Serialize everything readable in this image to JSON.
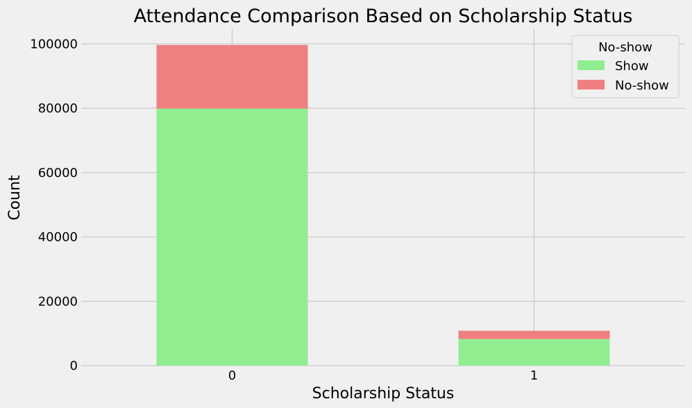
{
  "chart_data": {
    "type": "bar",
    "stacked": true,
    "title": "Attendance Comparison Based on Scholarship Status",
    "xlabel": "Scholarship Status",
    "ylabel": "Count",
    "categories": [
      "0",
      "1"
    ],
    "series": [
      {
        "name": "Show",
        "values": [
          79925,
          8283
        ],
        "color": "#90ee90"
      },
      {
        "name": "No-show",
        "values": [
          19741,
          2578
        ],
        "color": "#f08080"
      }
    ],
    "ylim": [
      0,
      104600
    ],
    "yticks": [
      0,
      20000,
      40000,
      60000,
      80000,
      100000
    ],
    "grid": true,
    "legend": {
      "title": "No-show",
      "placement": "top-right"
    }
  }
}
